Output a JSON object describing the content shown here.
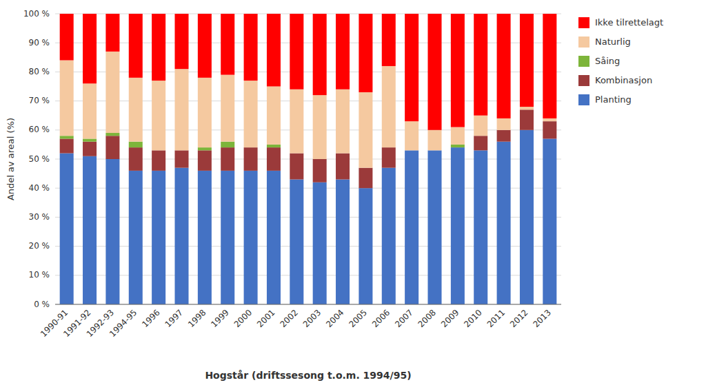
{
  "chart_data": {
    "type": "bar",
    "stacked": true,
    "grid": true,
    "legend": "right",
    "xlabel": "Hogstår (driftssesong t.o.m. 1994/95)",
    "ylabel": "Andel av areal (%)",
    "categories": [
      "1990-91",
      "1991-92",
      "1992-93",
      "1994-95",
      "1996",
      "1997",
      "1998",
      "1999",
      "2000",
      "2001",
      "2002",
      "2003",
      "2004",
      "2005",
      "2006",
      "2007",
      "2008",
      "2009",
      "2010",
      "2011",
      "2012",
      "2013"
    ],
    "ylim": [
      0,
      100
    ],
    "yticks": [
      {
        "value": 0,
        "label": "0 %"
      },
      {
        "value": 10,
        "label": "10 %"
      },
      {
        "value": 20,
        "label": "20 %"
      },
      {
        "value": 30,
        "label": "30 %"
      },
      {
        "value": 40,
        "label": "40 %"
      },
      {
        "value": 50,
        "label": "50 %"
      },
      {
        "value": 60,
        "label": "60 %"
      },
      {
        "value": 70,
        "label": "70 %"
      },
      {
        "value": 80,
        "label": "80 %"
      },
      {
        "value": 90,
        "label": "90 %"
      },
      {
        "value": 100,
        "label": "100 %"
      }
    ],
    "series": [
      {
        "name": "Planting",
        "color": "#4472C4",
        "values": [
          52,
          51,
          50,
          46,
          46,
          47,
          46,
          46,
          46,
          46,
          43,
          42,
          43,
          40,
          47,
          53,
          53,
          54,
          53,
          56,
          60,
          57
        ]
      },
      {
        "name": "Kombinasjon",
        "color": "#9B3A3A",
        "values": [
          5,
          5,
          8,
          8,
          7,
          6,
          7,
          8,
          8,
          8,
          9,
          8,
          9,
          7,
          7,
          0,
          0,
          0,
          5,
          4,
          7,
          6
        ]
      },
      {
        "name": "Såing",
        "color": "#7DB53A",
        "values": [
          1,
          1,
          1,
          2,
          0,
          0,
          1,
          2,
          0,
          1,
          0,
          0,
          0,
          0,
          0,
          0,
          0,
          1,
          0,
          0,
          0,
          0
        ]
      },
      {
        "name": "Naturlig",
        "color": "#F5C9A0",
        "values": [
          26,
          19,
          28,
          22,
          24,
          28,
          24,
          23,
          23,
          20,
          22,
          22,
          22,
          26,
          28,
          10,
          7,
          6,
          7,
          4,
          1,
          1
        ]
      },
      {
        "name": "Ikke tilrettelagt",
        "color": "#FF0000",
        "values": [
          16,
          24,
          13,
          22,
          23,
          19,
          22,
          21,
          23,
          25,
          26,
          28,
          26,
          27,
          18,
          37,
          40,
          39,
          35,
          36,
          32,
          36
        ]
      }
    ]
  }
}
